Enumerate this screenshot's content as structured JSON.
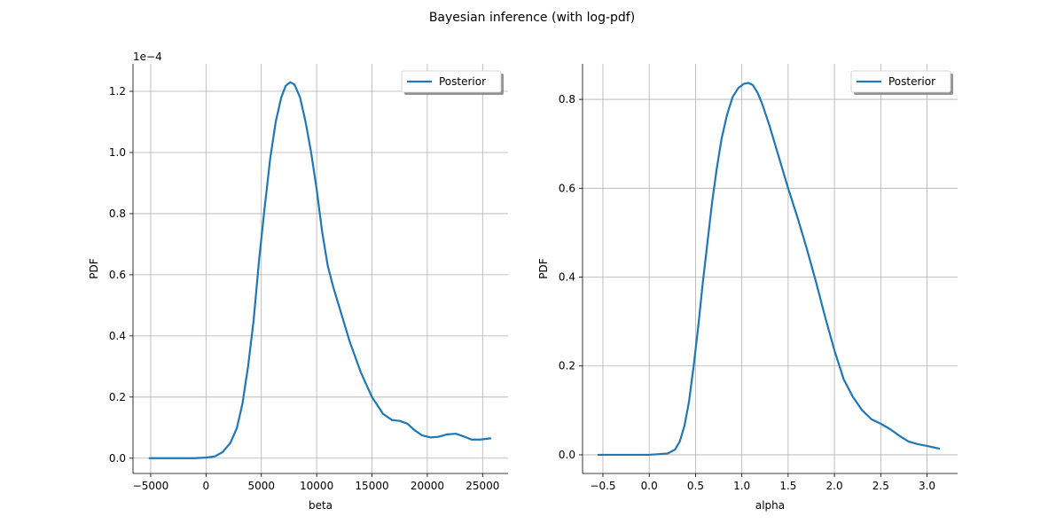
{
  "figure": {
    "title": "Bayesian inference (with log-pdf)",
    "accent_color": "#1f77b4"
  },
  "chart_data": [
    {
      "type": "line",
      "xlabel": "beta",
      "ylabel": "PDF",
      "y_offset_label": "1e−4",
      "xlim": [
        -6600,
        27300
      ],
      "ylim": [
        -0.05,
        1.29
      ],
      "xticks": [
        -5000,
        0,
        5000,
        10000,
        15000,
        20000,
        25000
      ],
      "xtick_labels": [
        "−5000",
        "0",
        "5000",
        "10000",
        "15000",
        "20000",
        "25000"
      ],
      "yticks": [
        0.0,
        0.2,
        0.4,
        0.6,
        0.8,
        1.0,
        1.2
      ],
      "ytick_labels": [
        "0.0",
        "0.2",
        "0.4",
        "0.6",
        "0.8",
        "1.0",
        "1.2"
      ],
      "grid": true,
      "legend_position": "upper right",
      "series": [
        {
          "name": "Posterior",
          "color": "#1f77b4",
          "x": [
            -5100,
            -3000,
            -1000,
            0,
            800,
            1500,
            2200,
            2800,
            3300,
            3800,
            4300,
            4800,
            5300,
            5800,
            6300,
            6800,
            7200,
            7600,
            8000,
            8500,
            9000,
            9500,
            10000,
            10500,
            11000,
            11500,
            12000,
            13000,
            14000,
            15000,
            16000,
            16800,
            17500,
            18200,
            18800,
            19500,
            20300,
            21000,
            21800,
            22600,
            23300,
            24000,
            24800,
            25700
          ],
          "y": [
            0.0,
            0.0,
            0.0,
            0.002,
            0.006,
            0.02,
            0.05,
            0.1,
            0.18,
            0.3,
            0.45,
            0.65,
            0.82,
            0.98,
            1.1,
            1.18,
            1.218,
            1.23,
            1.222,
            1.18,
            1.1,
            1.0,
            0.88,
            0.74,
            0.63,
            0.56,
            0.5,
            0.38,
            0.28,
            0.2,
            0.145,
            0.125,
            0.122,
            0.113,
            0.093,
            0.075,
            0.068,
            0.07,
            0.078,
            0.08,
            0.071,
            0.061,
            0.061,
            0.065
          ]
        }
      ]
    },
    {
      "type": "line",
      "xlabel": "alpha",
      "ylabel": "PDF",
      "xlim": [
        -0.72,
        3.33
      ],
      "ylim": [
        -0.042,
        0.88
      ],
      "xticks": [
        -0.5,
        0.0,
        0.5,
        1.0,
        1.5,
        2.0,
        2.5,
        3.0
      ],
      "xtick_labels": [
        "−0.5",
        "0.0",
        "0.5",
        "1.0",
        "1.5",
        "2.0",
        "2.5",
        "3.0"
      ],
      "yticks": [
        0.0,
        0.2,
        0.4,
        0.6,
        0.8
      ],
      "ytick_labels": [
        "0.0",
        "0.2",
        "0.4",
        "0.6",
        "0.8"
      ],
      "grid": true,
      "legend_position": "upper right",
      "series": [
        {
          "name": "Posterior",
          "color": "#1f77b4",
          "x": [
            -0.55,
            -0.3,
            0.0,
            0.2,
            0.28,
            0.33,
            0.38,
            0.43,
            0.48,
            0.53,
            0.58,
            0.63,
            0.68,
            0.73,
            0.78,
            0.84,
            0.9,
            0.96,
            1.02,
            1.07,
            1.12,
            1.17,
            1.22,
            1.3,
            1.4,
            1.5,
            1.6,
            1.7,
            1.8,
            1.9,
            2.0,
            2.1,
            2.2,
            2.3,
            2.4,
            2.5,
            2.6,
            2.7,
            2.8,
            2.9,
            3.0,
            3.13
          ],
          "y": [
            0.0,
            0.0,
            0.0,
            0.003,
            0.012,
            0.03,
            0.065,
            0.12,
            0.2,
            0.29,
            0.39,
            0.48,
            0.57,
            0.645,
            0.71,
            0.765,
            0.805,
            0.825,
            0.835,
            0.837,
            0.832,
            0.815,
            0.79,
            0.74,
            0.67,
            0.6,
            0.535,
            0.465,
            0.39,
            0.31,
            0.235,
            0.17,
            0.13,
            0.1,
            0.08,
            0.07,
            0.058,
            0.043,
            0.03,
            0.024,
            0.02,
            0.014
          ]
        }
      ]
    }
  ]
}
